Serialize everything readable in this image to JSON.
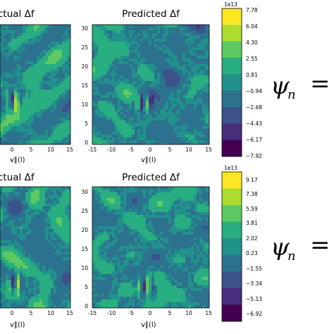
{
  "figure": {
    "rows": [
      {
        "panels": [
          {
            "title": "ctual Δf",
            "x_ticks": [
              "0",
              "5",
              "10",
              "15"
            ]
          },
          {
            "title": "Predicted Δf",
            "x_ticks": [
              "-15",
              "-10",
              "-5",
              "0",
              "5",
              "10",
              "15"
            ],
            "y_ticks": [
              "0",
              "5",
              "10",
              "15",
              "20",
              "25",
              "30"
            ]
          }
        ],
        "x_label": "v∥(l)",
        "colorbar": {
          "exponent": "1e13",
          "ticks": [
            "7.78",
            "6.04",
            "4.30",
            "2.55",
            "0.81",
            "−0.94",
            "−2.68",
            "−4.43",
            "−6.17",
            "−7.92"
          ]
        },
        "psi": "ψ",
        "psi_sub": "n",
        "eq": "="
      },
      {
        "panels": [
          {
            "title": "ctual Δf",
            "x_ticks": [
              "0",
              "5",
              "10",
              "15"
            ]
          },
          {
            "title": "Predicted Δf",
            "x_ticks": [
              "-15",
              "-10",
              "-5",
              "0",
              "5",
              "10",
              "15"
            ],
            "y_ticks": [
              "0",
              "5",
              "10",
              "15",
              "20",
              "25",
              "30"
            ]
          }
        ],
        "x_label": "v∥(l)",
        "colorbar": {
          "exponent": "1e13",
          "ticks": [
            "9.17",
            "7.38",
            "5.59",
            "3.81",
            "2.02",
            "0.23",
            "−1.55",
            "−3.34",
            "−5.13",
            "−6.92"
          ]
        },
        "psi": "ψ",
        "psi_sub": "n",
        "eq": "="
      }
    ],
    "colors": [
      "#440154",
      "#472d7b",
      "#3b528b",
      "#2c728e",
      "#21918c",
      "#28ae80",
      "#5ec962",
      "#addc30",
      "#fde725"
    ]
  },
  "chart_data": [
    {
      "type": "heatmap",
      "title": "Actual Δf (top)",
      "x_range": [
        -15,
        15
      ],
      "y_range": [
        0,
        32
      ],
      "xlabel": "v∥(l)",
      "colorbar_range": [
        -79200000000000.0,
        77800000000000.0
      ]
    },
    {
      "type": "heatmap",
      "title": "Predicted Δf",
      "x_range": [
        -15,
        15
      ],
      "y_range": [
        0,
        32
      ],
      "xlabel": "v∥(l)",
      "colorbar_range": [
        -79200000000000.0,
        77800000000000.0
      ]
    },
    {
      "type": "heatmap",
      "title": "Actual Δf (bottom)",
      "x_range": [
        -15,
        15
      ],
      "y_range": [
        0,
        32
      ],
      "xlabel": "v∥(l)",
      "colorbar_range": [
        -69200000000000.0,
        91700000000000.0
      ]
    },
    {
      "type": "heatmap",
      "title": "Predicted Δf",
      "x_range": [
        -15,
        15
      ],
      "y_range": [
        0,
        32
      ],
      "xlabel": "v∥(l)",
      "colorbar_range": [
        -69200000000000.0,
        91700000000000.0
      ]
    }
  ]
}
